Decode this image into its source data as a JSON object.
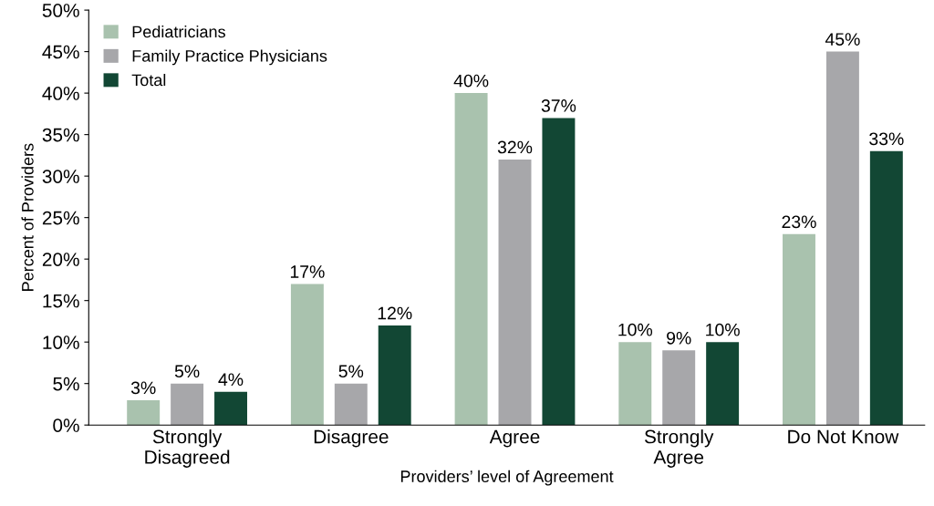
{
  "chart_data": {
    "type": "bar",
    "xlabel": "Providers’ level of Agreement",
    "ylabel": "Percent of Providers",
    "categories": [
      "Strongly\nDisagreed",
      "Disagree",
      "Agree",
      "Strongly\nAgree",
      "Do Not Know"
    ],
    "series": [
      {
        "name": "Pediatricians",
        "color": "#a9c2ae",
        "values": [
          3,
          17,
          40,
          10,
          23
        ],
        "value_labels": [
          "3%",
          "17%",
          "40%",
          "10%",
          "23%"
        ]
      },
      {
        "name": "Family Practice Physicians",
        "color": "#a7a7aa",
        "values": [
          5,
          5,
          32,
          9,
          45
        ],
        "value_labels": [
          "5%",
          "5%",
          "32%",
          "9%",
          "45%"
        ]
      },
      {
        "name": "Total",
        "color": "#124734",
        "values": [
          4,
          12,
          37,
          10,
          33
        ],
        "value_labels": [
          "4%",
          "12%",
          "37%",
          "10%",
          "33%"
        ]
      }
    ],
    "ylim": [
      0,
      50
    ],
    "yticks": [
      {
        "value": 0,
        "label": "0%"
      },
      {
        "value": 5,
        "label": "5%"
      },
      {
        "value": 10,
        "label": "10%"
      },
      {
        "value": 15,
        "label": "15%"
      },
      {
        "value": 20,
        "label": "20%"
      },
      {
        "value": 25,
        "label": "25%"
      },
      {
        "value": 30,
        "label": "30%"
      },
      {
        "value": 35,
        "label": "35%"
      },
      {
        "value": 40,
        "label": "40%"
      },
      {
        "value": 45,
        "label": "45%"
      },
      {
        "value": 50,
        "label": "50%"
      }
    ],
    "legend": "top left",
    "grid": false
  }
}
